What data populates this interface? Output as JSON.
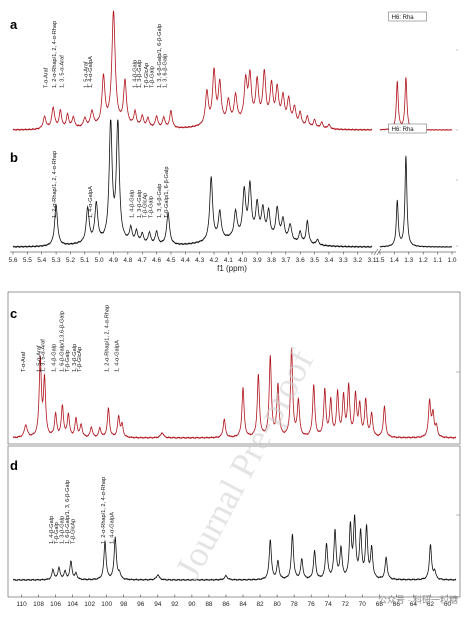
{
  "watermark": "Journal Pre-proof",
  "credit": "公众号 · 科研一粒糖",
  "colors": {
    "red": "#b0141c",
    "black": "#111111"
  },
  "chart_data": [
    {
      "id": "a",
      "type": "line",
      "panel_label": "a",
      "color": "#b0141c",
      "x_reversed": true,
      "xlim": [
        5.6,
        3.1
      ],
      "inset_xlim": [
        1.5,
        1.0
      ],
      "inset_label": "H6: Rha",
      "annotations": [
        {
          "text": "T-α-Araf",
          "x": 5.36
        },
        {
          "text": "1, 2-α-Rhap/1, 2, 4-α-Rhap",
          "x": 5.3
        },
        {
          "text": "1, 3, 5-α-Araf",
          "x": 5.25
        },
        {
          "text": "1, 5-α-Araf",
          "x": 5.08
        },
        {
          "text": "1, 4-α-GalpA",
          "x": 5.05
        },
        {
          "text": "1, 4-β-Galp",
          "x": 4.74
        },
        {
          "text": "1, 3-β-Galp",
          "x": 4.71
        },
        {
          "text": "T-β-GlcAp",
          "x": 4.66
        },
        {
          "text": "T-β-Galp",
          "x": 4.62
        },
        {
          "text": "1, 3, 6-β-Galp/1, 6-β-Galp",
          "x": 4.57
        },
        {
          "text": "1, 3, 6-β-Galp",
          "x": 4.53
        }
      ],
      "peaks": [
        {
          "x": 5.38,
          "h": 0.14,
          "w": 0.012
        },
        {
          "x": 5.32,
          "h": 0.24,
          "w": 0.012
        },
        {
          "x": 5.27,
          "h": 0.2,
          "w": 0.01
        },
        {
          "x": 5.22,
          "h": 0.15,
          "w": 0.01
        },
        {
          "x": 5.18,
          "h": 0.12,
          "w": 0.01
        },
        {
          "x": 5.1,
          "h": 0.1,
          "w": 0.01
        },
        {
          "x": 5.05,
          "h": 0.17,
          "w": 0.012
        },
        {
          "x": 4.97,
          "h": 0.55,
          "w": 0.012
        },
        {
          "x": 4.9,
          "h": 1.3,
          "w": 0.014
        },
        {
          "x": 4.82,
          "h": 0.5,
          "w": 0.012
        },
        {
          "x": 4.75,
          "h": 0.16,
          "w": 0.01
        },
        {
          "x": 4.7,
          "h": 0.12,
          "w": 0.01
        },
        {
          "x": 4.66,
          "h": 0.1,
          "w": 0.01
        },
        {
          "x": 4.6,
          "h": 0.13,
          "w": 0.01
        },
        {
          "x": 4.55,
          "h": 0.12,
          "w": 0.01
        },
        {
          "x": 4.5,
          "h": 0.2,
          "w": 0.01
        },
        {
          "x": 4.25,
          "h": 0.38,
          "w": 0.012
        },
        {
          "x": 4.2,
          "h": 0.6,
          "w": 0.012
        },
        {
          "x": 4.16,
          "h": 0.45,
          "w": 0.012
        },
        {
          "x": 4.1,
          "h": 0.25,
          "w": 0.012
        },
        {
          "x": 4.05,
          "h": 0.3,
          "w": 0.012
        },
        {
          "x": 3.98,
          "h": 0.45,
          "w": 0.012
        },
        {
          "x": 3.95,
          "h": 0.5,
          "w": 0.012
        },
        {
          "x": 3.9,
          "h": 0.45,
          "w": 0.012
        },
        {
          "x": 3.85,
          "h": 0.55,
          "w": 0.012
        },
        {
          "x": 3.8,
          "h": 0.42,
          "w": 0.012
        },
        {
          "x": 3.76,
          "h": 0.38,
          "w": 0.012
        },
        {
          "x": 3.72,
          "h": 0.3,
          "w": 0.012
        },
        {
          "x": 3.68,
          "h": 0.28,
          "w": 0.012
        },
        {
          "x": 3.64,
          "h": 0.2,
          "w": 0.012
        },
        {
          "x": 3.6,
          "h": 0.15,
          "w": 0.01
        },
        {
          "x": 3.55,
          "h": 0.12,
          "w": 0.01
        },
        {
          "x": 3.5,
          "h": 0.09,
          "w": 0.01
        },
        {
          "x": 3.45,
          "h": 0.07,
          "w": 0.01
        },
        {
          "x": 3.4,
          "h": 0.05,
          "w": 0.01
        }
      ],
      "inset_peaks": [
        {
          "x": 1.38,
          "h": 0.55,
          "w": 0.008
        },
        {
          "x": 1.32,
          "h": 0.6,
          "w": 0.008
        }
      ],
      "baseline_hump": [
        {
          "x": 3.95,
          "h": 0.08,
          "w": 0.35
        },
        {
          "x": 4.9,
          "h": 0.04,
          "w": 0.3
        }
      ]
    },
    {
      "id": "b",
      "type": "line",
      "panel_label": "b",
      "color": "#111111",
      "x_reversed": true,
      "xlim": [
        5.6,
        3.1
      ],
      "inset_xlim": [
        1.5,
        1.0
      ],
      "inset_label": "H6: Rha",
      "xticks": [
        "5.6",
        "5.5",
        "5.4",
        "5.3",
        "5.2",
        "5.1",
        "5.0",
        "4.9",
        "4.8",
        "4.7",
        "4.6",
        "4.5",
        "4.4",
        "4.3",
        "4.2",
        "4.1",
        "4.0",
        "3.9",
        "3.8",
        "3.7",
        "3.6",
        "3.5",
        "3.4",
        "3.3",
        "3.2",
        "3.1"
      ],
      "inset_xticks": [
        "1.5",
        "1.4",
        "1.3",
        "1.2",
        "1.1",
        "1.0"
      ],
      "xlabel": "f1 (ppm)",
      "annotations": [
        {
          "text": "1, 2-α-Rhap/1, 2, 4-α-Rhap",
          "x": 5.3
        },
        {
          "text": "1, 4-α-GalpA",
          "x": 5.05
        },
        {
          "text": "1, 4-β-Galp",
          "x": 4.76
        },
        {
          "text": "1, 3-β-Galp",
          "x": 4.71
        },
        {
          "text": "T-β-GlcAp",
          "x": 4.67
        },
        {
          "text": "T-β-Galp",
          "x": 4.63
        },
        {
          "text": "1, 3, 6-β-Galp",
          "x": 4.57
        },
        {
          "text": "T-β-Galp/1, 6-β-Galp",
          "x": 4.52
        }
      ],
      "peaks": [
        {
          "x": 5.3,
          "h": 0.45,
          "w": 0.012
        },
        {
          "x": 5.08,
          "h": 0.38,
          "w": 0.012
        },
        {
          "x": 5.02,
          "h": 0.42,
          "w": 0.012
        },
        {
          "x": 4.92,
          "h": 1.3,
          "w": 0.012
        },
        {
          "x": 4.87,
          "h": 1.3,
          "w": 0.012
        },
        {
          "x": 4.78,
          "h": 0.15,
          "w": 0.01
        },
        {
          "x": 4.74,
          "h": 0.12,
          "w": 0.01
        },
        {
          "x": 4.7,
          "h": 0.1,
          "w": 0.01
        },
        {
          "x": 4.65,
          "h": 0.12,
          "w": 0.01
        },
        {
          "x": 4.6,
          "h": 0.14,
          "w": 0.01
        },
        {
          "x": 4.52,
          "h": 0.35,
          "w": 0.012
        },
        {
          "x": 4.22,
          "h": 0.7,
          "w": 0.012
        },
        {
          "x": 4.16,
          "h": 0.3,
          "w": 0.012
        },
        {
          "x": 4.05,
          "h": 0.28,
          "w": 0.012
        },
        {
          "x": 3.99,
          "h": 0.5,
          "w": 0.012
        },
        {
          "x": 3.95,
          "h": 0.55,
          "w": 0.012
        },
        {
          "x": 3.9,
          "h": 0.35,
          "w": 0.012
        },
        {
          "x": 3.86,
          "h": 0.3,
          "w": 0.012
        },
        {
          "x": 3.82,
          "h": 0.28,
          "w": 0.012
        },
        {
          "x": 3.76,
          "h": 0.33,
          "w": 0.012
        },
        {
          "x": 3.72,
          "h": 0.22,
          "w": 0.012
        },
        {
          "x": 3.67,
          "h": 0.18,
          "w": 0.012
        },
        {
          "x": 3.6,
          "h": 0.12,
          "w": 0.01
        },
        {
          "x": 3.55,
          "h": 0.25,
          "w": 0.01
        },
        {
          "x": 3.48,
          "h": 0.06,
          "w": 0.01
        }
      ],
      "inset_peaks": [
        {
          "x": 1.38,
          "h": 0.5,
          "w": 0.008
        },
        {
          "x": 1.32,
          "h": 1.0,
          "w": 0.008
        }
      ],
      "baseline_hump": [
        {
          "x": 3.95,
          "h": 0.1,
          "w": 0.35
        },
        {
          "x": 4.9,
          "h": 0.05,
          "w": 0.3
        }
      ]
    },
    {
      "id": "c",
      "type": "line",
      "panel_label": "c",
      "color": "#b0141c",
      "x_reversed": true,
      "xlim": [
        111,
        59
      ],
      "annotations": [
        {
          "text": "T-α-Araf",
          "x": 109.6
        },
        {
          "text": "1, 5-α-Araf",
          "x": 107.8
        },
        {
          "text": "1, 3, 5-α-Araf",
          "x": 107.3
        },
        {
          "text": "1, 4-β-Galp",
          "x": 106.0
        },
        {
          "text": "1, 6-β-Galp/1,3,6-β-Galp",
          "x": 105.1
        },
        {
          "text": "T-β-Galp",
          "x": 104.4
        },
        {
          "text": "1, 3-β-Galp",
          "x": 103.6
        },
        {
          "text": "T-β-GlcAp",
          "x": 103.0
        },
        {
          "text": "1, 2-α-Rhap/1, 2, 4-α-Rhap",
          "x": 99.8
        },
        {
          "text": "1, 4-α-GalpA",
          "x": 98.6
        }
      ],
      "peaks": [
        {
          "x": 109.5,
          "h": 0.12,
          "w": 0.2
        },
        {
          "x": 107.8,
          "h": 0.75,
          "w": 0.15
        },
        {
          "x": 107.3,
          "h": 0.55,
          "w": 0.15
        },
        {
          "x": 106.0,
          "h": 0.22,
          "w": 0.15
        },
        {
          "x": 105.2,
          "h": 0.3,
          "w": 0.15
        },
        {
          "x": 104.5,
          "h": 0.22,
          "w": 0.15
        },
        {
          "x": 103.6,
          "h": 0.18,
          "w": 0.15
        },
        {
          "x": 103.0,
          "h": 0.12,
          "w": 0.15
        },
        {
          "x": 101.8,
          "h": 0.1,
          "w": 0.15
        },
        {
          "x": 100.8,
          "h": 0.09,
          "w": 0.15
        },
        {
          "x": 99.8,
          "h": 0.28,
          "w": 0.15
        },
        {
          "x": 98.6,
          "h": 0.2,
          "w": 0.15
        },
        {
          "x": 98.2,
          "h": 0.12,
          "w": 0.15
        },
        {
          "x": 93.5,
          "h": 0.05,
          "w": 0.2
        },
        {
          "x": 86.2,
          "h": 0.18,
          "w": 0.15
        },
        {
          "x": 84.0,
          "h": 0.48,
          "w": 0.15
        },
        {
          "x": 82.2,
          "h": 0.6,
          "w": 0.15
        },
        {
          "x": 80.8,
          "h": 0.78,
          "w": 0.15
        },
        {
          "x": 79.9,
          "h": 0.5,
          "w": 0.15
        },
        {
          "x": 78.3,
          "h": 0.85,
          "w": 0.15
        },
        {
          "x": 77.5,
          "h": 0.35,
          "w": 0.15
        },
        {
          "x": 75.7,
          "h": 0.5,
          "w": 0.15
        },
        {
          "x": 74.4,
          "h": 0.45,
          "w": 0.15
        },
        {
          "x": 73.7,
          "h": 0.35,
          "w": 0.15
        },
        {
          "x": 72.9,
          "h": 0.42,
          "w": 0.15
        },
        {
          "x": 72.2,
          "h": 0.38,
          "w": 0.15
        },
        {
          "x": 71.6,
          "h": 0.48,
          "w": 0.15
        },
        {
          "x": 70.8,
          "h": 0.4,
          "w": 0.15
        },
        {
          "x": 70.3,
          "h": 0.3,
          "w": 0.15
        },
        {
          "x": 69.6,
          "h": 0.35,
          "w": 0.15
        },
        {
          "x": 68.9,
          "h": 0.22,
          "w": 0.15
        },
        {
          "x": 67.4,
          "h": 0.3,
          "w": 0.15
        },
        {
          "x": 62.1,
          "h": 0.35,
          "w": 0.15
        },
        {
          "x": 61.7,
          "h": 0.22,
          "w": 0.15
        },
        {
          "x": 61.3,
          "h": 0.1,
          "w": 0.15
        }
      ]
    },
    {
      "id": "d",
      "type": "line",
      "panel_label": "d",
      "color": "#111111",
      "x_reversed": true,
      "xlim": [
        111,
        59
      ],
      "xticks": [
        "110",
        "108",
        "106",
        "104",
        "102",
        "100",
        "98",
        "96",
        "94",
        "92",
        "90",
        "88",
        "86",
        "84",
        "82",
        "80",
        "78",
        "76",
        "74",
        "72",
        "70",
        "68",
        "66",
        "64",
        "62",
        "60"
      ],
      "annotations": [
        {
          "text": "1, 4-β-Galp",
          "x": 106.3
        },
        {
          "text": "T-β-Galp",
          "x": 105.7
        },
        {
          "text": "1, 3-β-Galp",
          "x": 105.1
        },
        {
          "text": "1, 6-β-Galp/1, 3, 6-β-Galp",
          "x": 104.4
        },
        {
          "text": "T-β-GlcAp",
          "x": 103.8
        },
        {
          "text": "1, 2-α-Rhap/1, 2, 4-α-Rhap",
          "x": 100.2
        },
        {
          "text": "1, 4-α-GalpA",
          "x": 99.2
        }
      ],
      "peaks": [
        {
          "x": 106.3,
          "h": 0.1,
          "w": 0.15
        },
        {
          "x": 105.6,
          "h": 0.12,
          "w": 0.15
        },
        {
          "x": 104.9,
          "h": 0.08,
          "w": 0.15
        },
        {
          "x": 104.2,
          "h": 0.18,
          "w": 0.15
        },
        {
          "x": 103.6,
          "h": 0.06,
          "w": 0.15
        },
        {
          "x": 100.2,
          "h": 0.38,
          "w": 0.15
        },
        {
          "x": 99.0,
          "h": 0.42,
          "w": 0.15
        },
        {
          "x": 98.5,
          "h": 0.06,
          "w": 0.15
        },
        {
          "x": 94.0,
          "h": 0.05,
          "w": 0.2
        },
        {
          "x": 86.0,
          "h": 0.04,
          "w": 0.2
        },
        {
          "x": 80.8,
          "h": 0.4,
          "w": 0.15
        },
        {
          "x": 79.9,
          "h": 0.18,
          "w": 0.15
        },
        {
          "x": 78.2,
          "h": 0.45,
          "w": 0.15
        },
        {
          "x": 77.1,
          "h": 0.2,
          "w": 0.15
        },
        {
          "x": 75.6,
          "h": 0.28,
          "w": 0.15
        },
        {
          "x": 74.2,
          "h": 0.35,
          "w": 0.15
        },
        {
          "x": 73.2,
          "h": 0.48,
          "w": 0.15
        },
        {
          "x": 72.5,
          "h": 0.3,
          "w": 0.15
        },
        {
          "x": 71.4,
          "h": 0.52,
          "w": 0.15
        },
        {
          "x": 70.9,
          "h": 0.58,
          "w": 0.15
        },
        {
          "x": 70.2,
          "h": 0.45,
          "w": 0.15
        },
        {
          "x": 69.5,
          "h": 0.5,
          "w": 0.15
        },
        {
          "x": 68.9,
          "h": 0.3,
          "w": 0.15
        },
        {
          "x": 67.2,
          "h": 0.22,
          "w": 0.15
        },
        {
          "x": 62.0,
          "h": 0.35,
          "w": 0.15
        },
        {
          "x": 61.5,
          "h": 0.08,
          "w": 0.15
        }
      ]
    }
  ]
}
